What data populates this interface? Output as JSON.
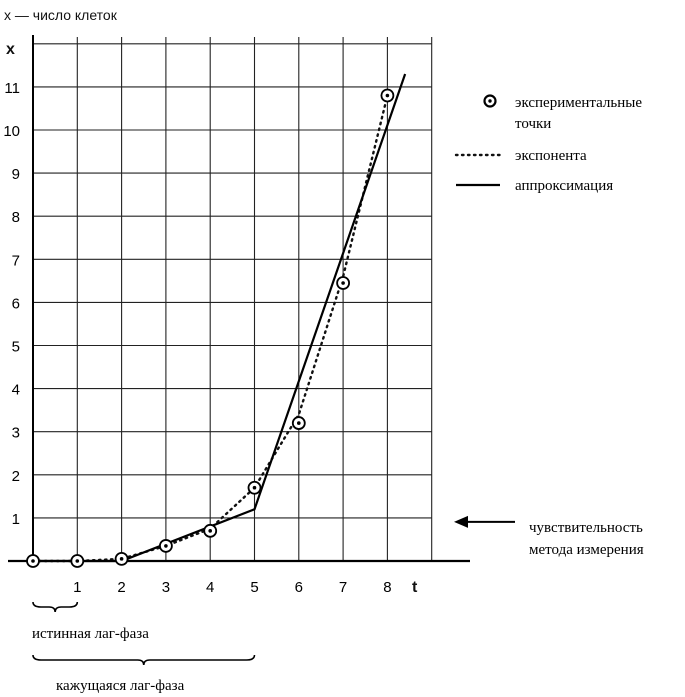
{
  "chart_data": {
    "type": "line",
    "top_caption": "x — число клеток",
    "ylabel": "x",
    "xlabel": "t",
    "xlim": [
      0,
      8.5
    ],
    "ylim": [
      0,
      12
    ],
    "x_ticks": [
      1,
      2,
      3,
      4,
      5,
      6,
      7,
      8
    ],
    "y_ticks": [
      1,
      2,
      3,
      4,
      5,
      6,
      7,
      8,
      9,
      10,
      11
    ],
    "grid": true,
    "legend_position": "top-right",
    "series": [
      {
        "name": "экспериментальные точки",
        "style": "circle-dot-markers",
        "x": [
          0,
          1,
          2,
          3,
          4,
          5,
          6,
          7,
          8
        ],
        "y": [
          0,
          0,
          0.05,
          0.35,
          0.7,
          1.7,
          3.2,
          6.45,
          10.8
        ]
      },
      {
        "name": "экспонента",
        "style": "dotted",
        "x": [
          0,
          1,
          2,
          3,
          4,
          5,
          6,
          7,
          8
        ],
        "y": [
          0,
          0,
          0.05,
          0.35,
          0.75,
          1.7,
          3.4,
          6.6,
          10.8
        ]
      },
      {
        "name": "аппроксимация",
        "style": "solid",
        "x": [
          0,
          1,
          2,
          5,
          8.4
        ],
        "y": [
          0,
          0,
          0,
          1.2,
          11.3
        ]
      }
    ],
    "sensitivity_level": 1,
    "sensitivity_label": [
      "чувствительность",
      "метода измерения"
    ],
    "true_lag_phase": {
      "label": "истинная лаг-фаза",
      "t_range": [
        0,
        1
      ]
    },
    "apparent_lag_phase": {
      "label": "кажущаяся лаг-фаза",
      "t_range": [
        0,
        5
      ]
    }
  }
}
